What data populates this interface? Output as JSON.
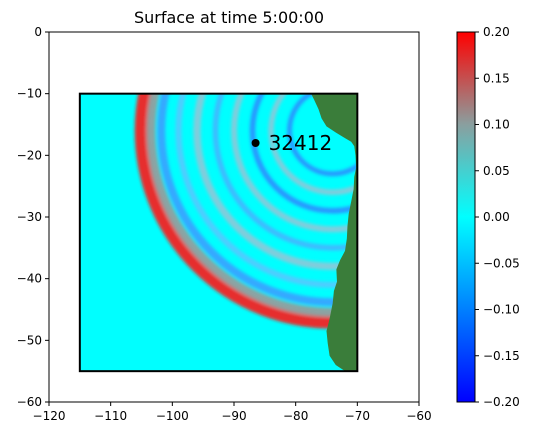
{
  "chart_data": {
    "type": "heatmap",
    "title": "Surface at time 5:00:00",
    "xlabel": "",
    "ylabel": "",
    "xlim": [
      -120,
      -60
    ],
    "ylim": [
      -60,
      0
    ],
    "x_ticks": [
      -120,
      -110,
      -100,
      -90,
      -80,
      -70,
      -60
    ],
    "y_ticks": [
      0,
      -10,
      -20,
      -30,
      -40,
      -50,
      -60
    ],
    "domain_box": {
      "x": [
        -115,
        -70
      ],
      "y": [
        -55,
        -10
      ]
    },
    "station": {
      "name": "32412",
      "x": -86.5,
      "y": -18.0
    },
    "colorbar": {
      "min": -0.2,
      "max": 0.2,
      "ticks": [
        0.2,
        0.15,
        0.1,
        0.05,
        0.0,
        -0.05,
        -0.1,
        -0.15,
        -0.2
      ],
      "tick_labels": [
        "0.20",
        "0.15",
        "0.10",
        "0.05",
        "0.00",
        "−0.05",
        "−0.10",
        "−0.15",
        "−0.20"
      ],
      "colors": [
        "#0000ff",
        "#00ffff",
        "#ff0000"
      ],
      "neutral_color": "#00ffff"
    },
    "land_color": "#3a7d3a",
    "grid": false,
    "legend": "none"
  }
}
